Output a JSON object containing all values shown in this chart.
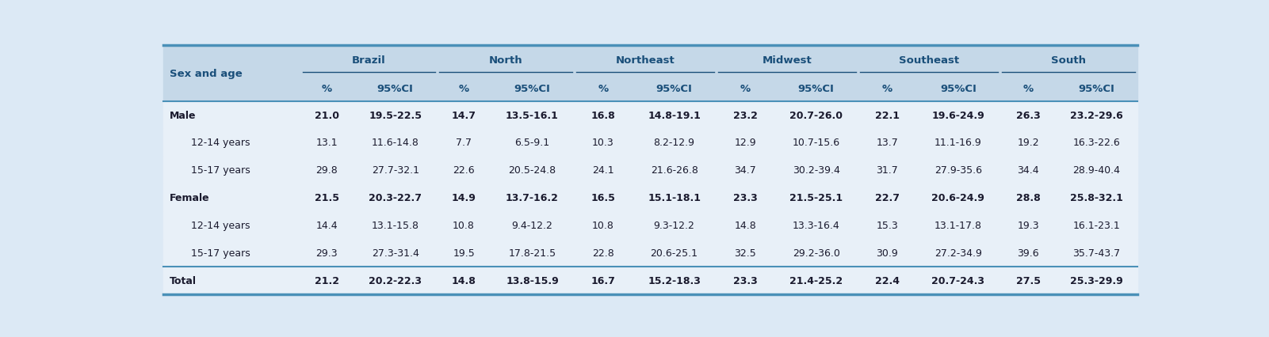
{
  "regions": [
    "Brazil",
    "North",
    "Northeast",
    "Midwest",
    "Southeast",
    "South"
  ],
  "rows": [
    [
      "Male",
      "21.0",
      "19.5-22.5",
      "14.7",
      "13.5-16.1",
      "16.8",
      "14.8-19.1",
      "23.2",
      "20.7-26.0",
      "22.1",
      "19.6-24.9",
      "26.3",
      "23.2-29.6"
    ],
    [
      "12-14 years",
      "13.1",
      "11.6-14.8",
      "7.7",
      "6.5-9.1",
      "10.3",
      "8.2-12.9",
      "12.9",
      "10.7-15.6",
      "13.7",
      "11.1-16.9",
      "19.2",
      "16.3-22.6"
    ],
    [
      "15-17 years",
      "29.8",
      "27.7-32.1",
      "22.6",
      "20.5-24.8",
      "24.1",
      "21.6-26.8",
      "34.7",
      "30.2-39.4",
      "31.7",
      "27.9-35.6",
      "34.4",
      "28.9-40.4"
    ],
    [
      "Female",
      "21.5",
      "20.3-22.7",
      "14.9",
      "13.7-16.2",
      "16.5",
      "15.1-18.1",
      "23.3",
      "21.5-25.1",
      "22.7",
      "20.6-24.9",
      "28.8",
      "25.8-32.1"
    ],
    [
      "12-14 years",
      "14.4",
      "13.1-15.8",
      "10.8",
      "9.4-12.2",
      "10.8",
      "9.3-12.2",
      "14.8",
      "13.3-16.4",
      "15.3",
      "13.1-17.8",
      "19.3",
      "16.1-23.1"
    ],
    [
      "15-17 years",
      "29.3",
      "27.3-31.4",
      "19.5",
      "17.8-21.5",
      "22.8",
      "20.6-25.1",
      "32.5",
      "29.2-36.0",
      "30.9",
      "27.2-34.9",
      "39.6",
      "35.7-43.7"
    ],
    [
      "Total",
      "21.2",
      "20.2-22.3",
      "14.8",
      "13.8-15.9",
      "16.7",
      "15.2-18.3",
      "23.3",
      "21.4-25.2",
      "22.4",
      "20.7-24.3",
      "27.5",
      "25.3-29.9"
    ]
  ],
  "subrows": [
    1,
    2,
    4,
    5
  ],
  "bold_rows": [
    0,
    3,
    6
  ],
  "total_row": 6,
  "header_bg": "#c5d8e8",
  "data_bg": "#e8f0f8",
  "total_bg": "#dce8f3",
  "border_color": "#4a90b8",
  "header_text_color": "#1a4f7a",
  "data_text_color": "#1a1a2e",
  "font_size": 9.0,
  "header_font_size": 9.5,
  "fig_bg": "#dce9f5"
}
